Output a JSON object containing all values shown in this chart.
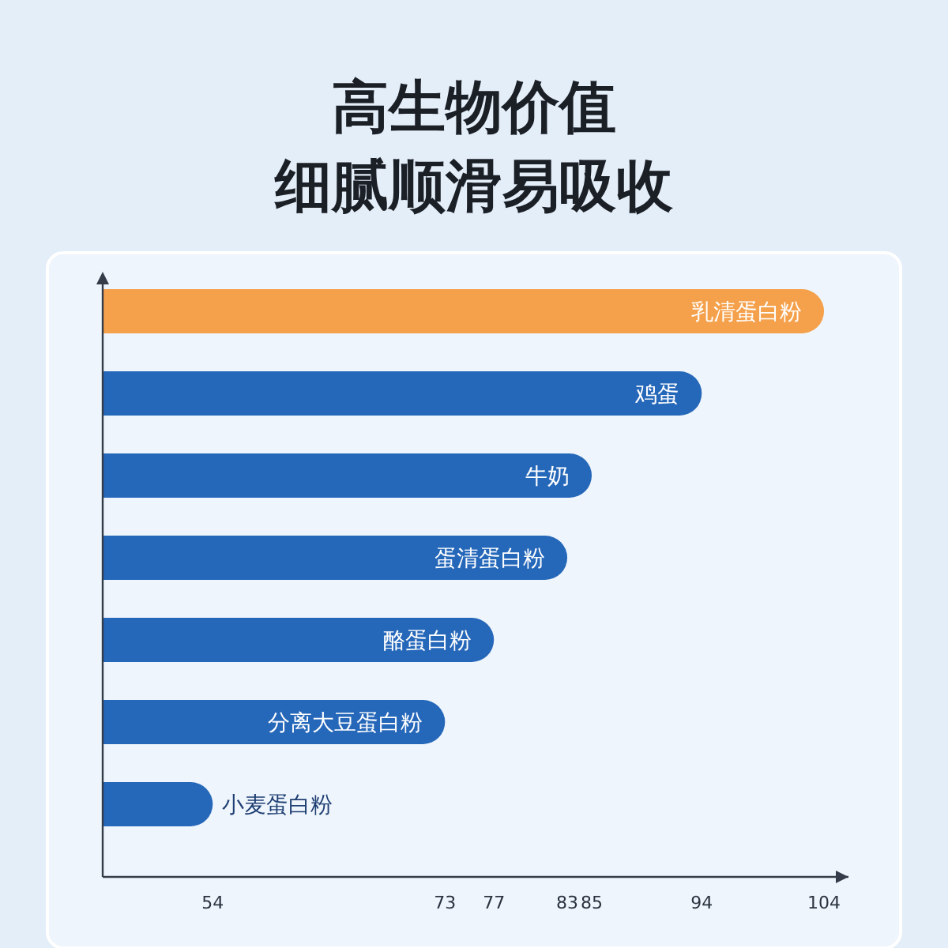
{
  "chart_data": {
    "type": "bar",
    "orientation": "horizontal",
    "title": "高生物价值",
    "subtitle": "细腻顺滑易吸收",
    "categories": [
      "乳清蛋白粉",
      "鸡蛋",
      "牛奶",
      "蛋清蛋白粉",
      "酪蛋白粉",
      "分离大豆蛋白粉",
      "小麦蛋白粉"
    ],
    "values": [
      104,
      94,
      85,
      83,
      77,
      73,
      54
    ],
    "colors": [
      "#f5a04a",
      "#2567b9",
      "#2567b9",
      "#2567b9",
      "#2567b9",
      "#2567b9",
      "#2567b9"
    ],
    "xlim": [
      45,
      106
    ],
    "xticks": [
      54,
      73,
      77,
      83,
      85,
      94,
      104
    ]
  }
}
